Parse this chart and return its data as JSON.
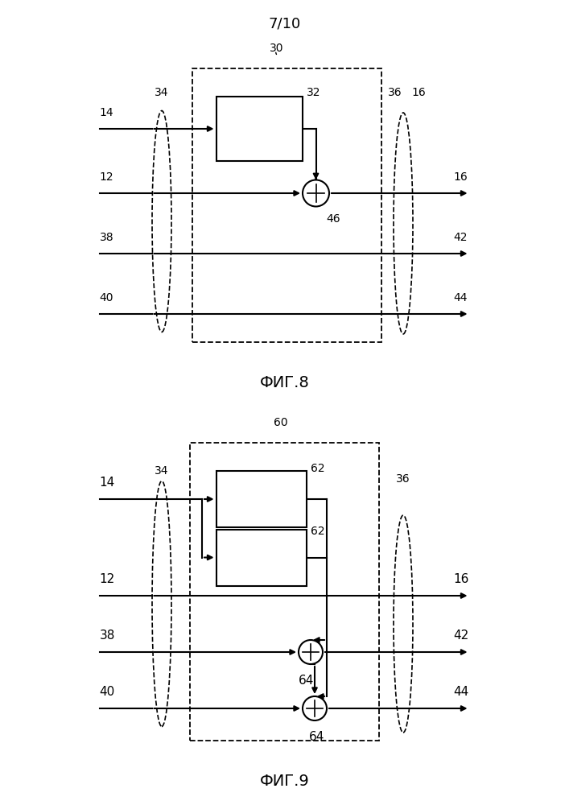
{
  "page_label": "7/10",
  "fig8_label": "ФИГ.8",
  "fig9_label": "ФИГ.9",
  "bg_color": "#ffffff",
  "font_size_label": 13,
  "font_size_number": 11
}
